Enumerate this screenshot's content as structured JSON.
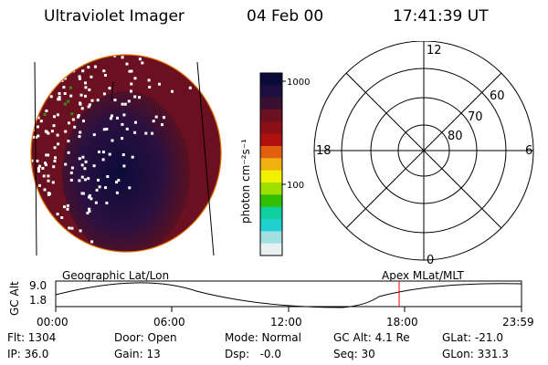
{
  "header": {
    "instrument": "Ultraviolet Imager",
    "date": "04 Feb 00",
    "time": "17:41:39 UT"
  },
  "colorbar": {
    "unit_label": "photon cm⁻²s⁻¹",
    "ticks": [
      "1000",
      "100"
    ],
    "colors": [
      "#0b0b3a",
      "#1d1040",
      "#3a1030",
      "#6a1020",
      "#8a1015",
      "#b01010",
      "#e06010",
      "#f0b010",
      "#f0f000",
      "#a0e000",
      "#30c000",
      "#10d0a0",
      "#20d0d0",
      "#a0e0e0",
      "#e8f0f0"
    ]
  },
  "polar_grid": {
    "mlt_labels": [
      "12",
      "18",
      "6",
      "0"
    ],
    "lat_labels": [
      "60",
      "70",
      "80"
    ]
  },
  "orbit_plot": {
    "left_title": "Geographic Lat/Lon",
    "right_title": "Apex MLat/MLT",
    "y_axis_label": "GC Alt",
    "y_ticks": [
      "9.0",
      "1.8"
    ],
    "x_ticks": [
      "00:00",
      "06:00",
      "12:00",
      "18:00",
      "23:59"
    ],
    "marker_color": "#ff0000"
  },
  "info": {
    "flt": "Flt: 1304",
    "ip": "IP: 36.0",
    "door": "Door: Open",
    "gain": "Gain: 13",
    "mode": "Mode: Normal",
    "dsp": "Dsp:   -0.0",
    "gcalt": "GC Alt: 4.1 Re",
    "seq": "Seq: 30",
    "glat": "GLat: -21.0",
    "glon": "GLon: 331.3"
  }
}
